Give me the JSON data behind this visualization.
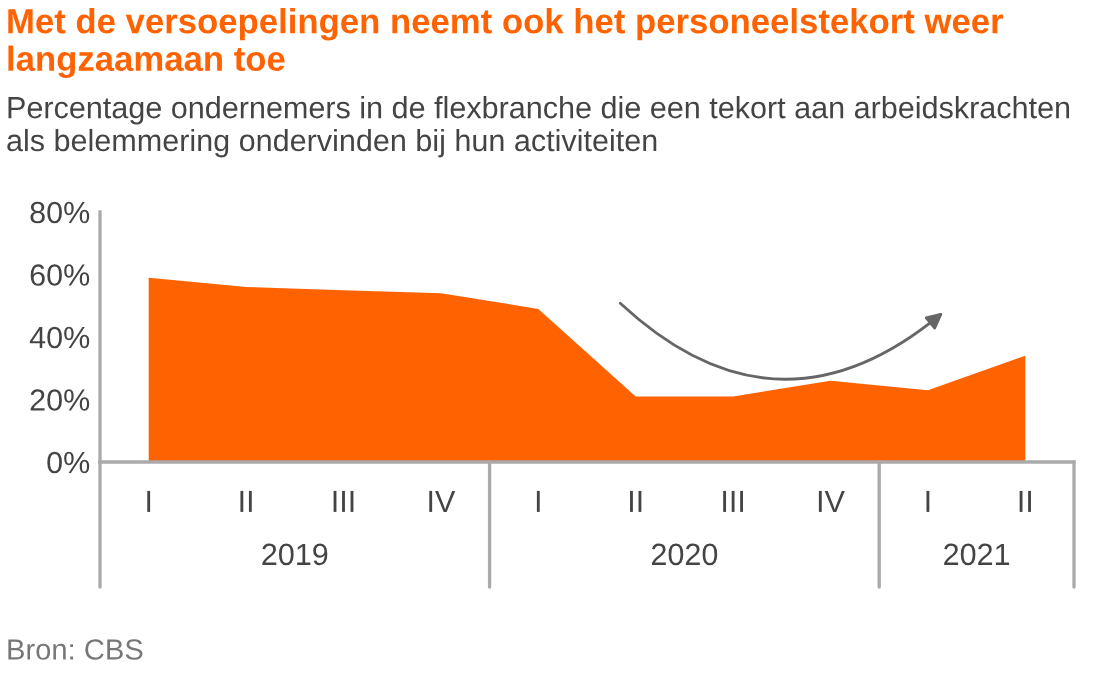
{
  "chart_data": {
    "type": "area",
    "title": "Met de versoepelingen neemt ook het personeelstekort weer langzaamaan toe",
    "subtitle": "Percentage ondernemers in de flexbranche die een tekort aan arbeidskrachten als belemmering ondervinden bij hun activiteiten",
    "categories": [
      "I",
      "II",
      "III",
      "IV",
      "I",
      "II",
      "III",
      "IV",
      "I",
      "II"
    ],
    "series": [
      {
        "color": "#ff6200",
        "values": [
          59,
          56,
          55,
          54,
          49,
          21,
          21,
          26,
          23,
          34
        ]
      }
    ],
    "ylim": [
      0,
      80
    ],
    "yticks": [
      {
        "value": 0,
        "label": "0%"
      },
      {
        "value": 20,
        "label": "20%"
      },
      {
        "value": 40,
        "label": "40%"
      },
      {
        "value": 60,
        "label": "60%"
      },
      {
        "value": 80,
        "label": "80%"
      }
    ],
    "grid": false,
    "legend": false,
    "annotations": [
      "2019",
      "2020",
      "2021",
      "Bron: CBS"
    ]
  }
}
